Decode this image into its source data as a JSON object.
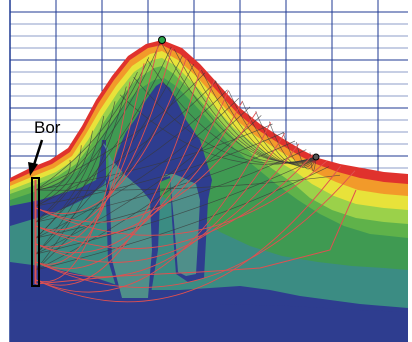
{
  "annotation": {
    "label": "Bor"
  },
  "colors": {
    "background": "#ffffff",
    "grid": "#1f3a93",
    "bedrock": "#2e3d8f",
    "layer_teal": "#3b8c83",
    "layer_green_dark": "#3f9a52",
    "layer_green": "#5fb24a",
    "layer_lightgreen": "#9bd14a",
    "layer_yellow": "#e8e23a",
    "layer_orange": "#f29a2a",
    "layer_red": "#e0322d",
    "body_teal": "#4f8f8a",
    "ray_red": "#e05050",
    "ray_dark": "#3a3a3a",
    "borehole_border": "#000000",
    "marker": "#2aa64a"
  },
  "icons": {
    "pointer": "arrow-icon",
    "borehole": "borehole-marker",
    "source": "circle-marker"
  }
}
